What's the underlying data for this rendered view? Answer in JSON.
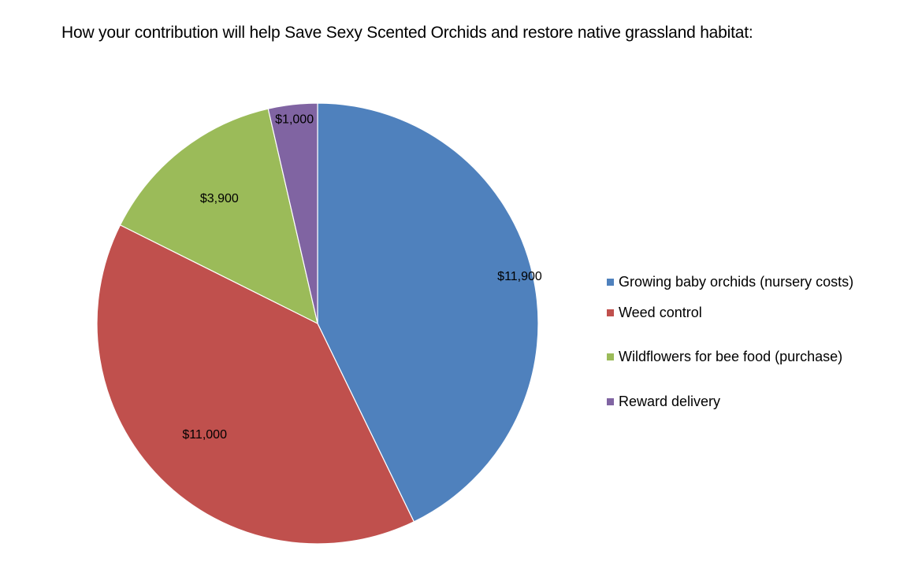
{
  "chart_data": {
    "type": "pie",
    "title": "How your contribution will  help Save Sexy Scented Orchids and restore native grassland habitat:",
    "categories": [
      "Growing baby orchids (nursery costs)",
      "Weed control",
      "Wildflowers for bee food (purchase)",
      "Reward delivery"
    ],
    "values": [
      11900,
      11000,
      3900,
      1000
    ],
    "data_labels": [
      "$11,900",
      "$11,000",
      "$3,900",
      "$1,000"
    ],
    "colors": [
      "#4F81BD",
      "#C0504D",
      "#9BBB59",
      "#8064A2"
    ],
    "legend_position": "right",
    "start_angle": "top",
    "direction": "clockwise"
  }
}
